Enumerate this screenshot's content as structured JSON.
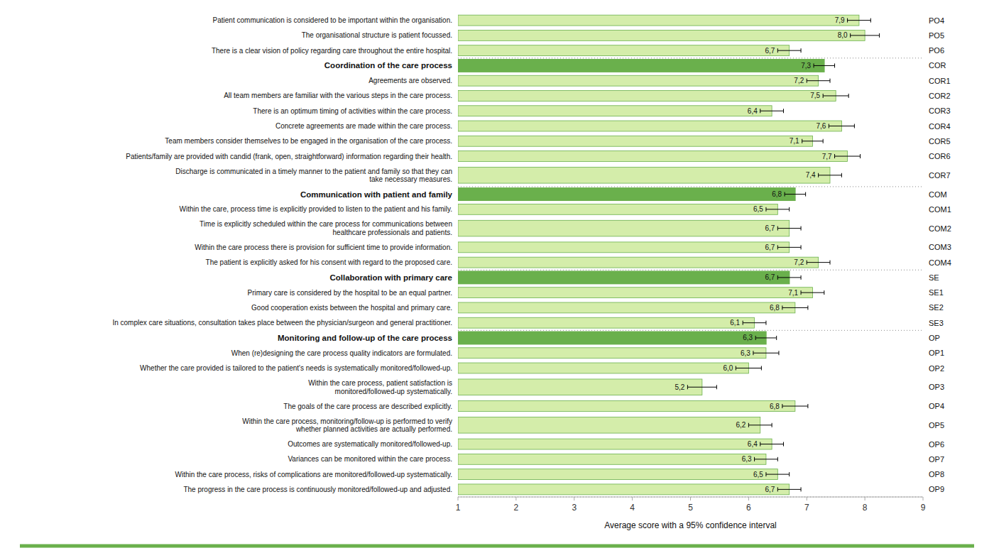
{
  "chart_data": {
    "type": "bar",
    "orientation": "horizontal",
    "categories": [
      "Patient communication is considered to be important within the organisation.",
      "The organisational structure is patient focussed.",
      "There is a clear vision of policy regarding care throughout the entire hospital.",
      "Coordination of the care process",
      "Agreements are observed.",
      "All team members are familiar with the various steps in the care process.",
      "There is an optimum timing of activities within the care process.",
      "Concrete agreements are made within the care process.",
      "Team members consider themselves to be engaged in the organisation of the care process.",
      "Patients/family are provided with candid (frank, open, straightforward) information regarding their health.",
      "Discharge is communicated in a timely manner to the patient and family so that they can\ntake necessary measures.",
      "Communication with patient and family",
      "Within the care, process time is explicitly provided to listen to the patient and his family.",
      "Time is explicitly scheduled within the care process for communications between\nhealthcare professionals and patients.",
      "Within the care process there is provision for sufficient time to provide information.",
      "The patient is explicitly asked for his consent with regard to the proposed care.",
      "Collaboration with primary care",
      "Primary care is considered by the hospital to be an equal partner.",
      "Good cooperation exists between the hospital and primary care.",
      "In complex care situations, consultation takes place between the physician/surgeon and general practitioner.",
      "Monitoring and follow-up of the care process",
      "When (re)designing the care process quality indicators are formulated.",
      "Whether the care provided is tailored to the patient's needs is systematically monitored/followed-up.",
      "Within the care process, patient satisfaction is\nmonitored/followed-up systematically.",
      "The goals of the care process are described explicitly.",
      "Within the care process, monitoring/follow-up is performed to verify\nwhether planned activities are actually performed.",
      "Outcomes are systematically monitored/followed-up.",
      "Variances can be monitored within the care process.",
      "Within the care process, risks of complications are monitored/followed-up systematically.",
      "The progress in the care process is continuously monitored/followed-up and adjusted."
    ],
    "codes": [
      "PO4",
      "PO5",
      "PO6",
      "COR",
      "COR1",
      "COR2",
      "COR3",
      "COR4",
      "COR5",
      "COR6",
      "COR7",
      "COM",
      "COM1",
      "COM2",
      "COM3",
      "COM4",
      "SE",
      "SE1",
      "SE2",
      "SE3",
      "OP",
      "OP1",
      "OP2",
      "OP3",
      "OP4",
      "OP5",
      "OP6",
      "OP7",
      "OP8",
      "OP9"
    ],
    "values": [
      7.9,
      8.0,
      6.7,
      7.3,
      7.2,
      7.5,
      6.4,
      7.6,
      7.1,
      7.7,
      7.4,
      6.8,
      6.5,
      6.7,
      6.7,
      7.2,
      6.7,
      7.1,
      6.8,
      6.1,
      6.3,
      6.3,
      6.0,
      5.2,
      6.8,
      6.2,
      6.4,
      6.3,
      6.5,
      6.7
    ],
    "value_labels": [
      "7,9",
      "8,0",
      "6,7",
      "7,3",
      "7,2",
      "7,5",
      "6,4",
      "7,6",
      "7,1",
      "7,7",
      "7,4",
      "6,8",
      "6,5",
      "6,7",
      "6,7",
      "7,2",
      "6,7",
      "7,1",
      "6,8",
      "6,1",
      "6,3",
      "6,3",
      "6,0",
      "5,2",
      "6,8",
      "6,2",
      "6,4",
      "6,3",
      "6,5",
      "6,7"
    ],
    "errors": [
      0.2,
      0.25,
      0.2,
      0.18,
      0.2,
      0.22,
      0.2,
      0.22,
      0.18,
      0.22,
      0.2,
      0.18,
      0.2,
      0.2,
      0.2,
      0.2,
      0.2,
      0.2,
      0.22,
      0.2,
      0.18,
      0.22,
      0.22,
      0.25,
      0.22,
      0.2,
      0.2,
      0.2,
      0.2,
      0.2
    ],
    "colors": [
      "#d4edaa",
      "#d4edaa",
      "#d4edaa",
      "#6ab04c",
      "#d4edaa",
      "#d4edaa",
      "#d4edaa",
      "#d4edaa",
      "#d4edaa",
      "#d4edaa",
      "#d4edaa",
      "#6ab04c",
      "#d4edaa",
      "#d4edaa",
      "#d4edaa",
      "#d4edaa",
      "#6ab04c",
      "#d4edaa",
      "#d4edaa",
      "#d4edaa",
      "#6ab04c",
      "#d4edaa",
      "#d4edaa",
      "#d4edaa",
      "#d4edaa",
      "#d4edaa",
      "#d4edaa",
      "#d4edaa",
      "#d4edaa",
      "#d4edaa"
    ],
    "color": "#6ab04c",
    "xlabel": "Average score with a 95% confidence interval",
    "xlim": [
      1,
      9
    ],
    "xticks": [
      1,
      2,
      3,
      4,
      5,
      6,
      7,
      8,
      9
    ],
    "grid": false,
    "data_labels": true
  }
}
